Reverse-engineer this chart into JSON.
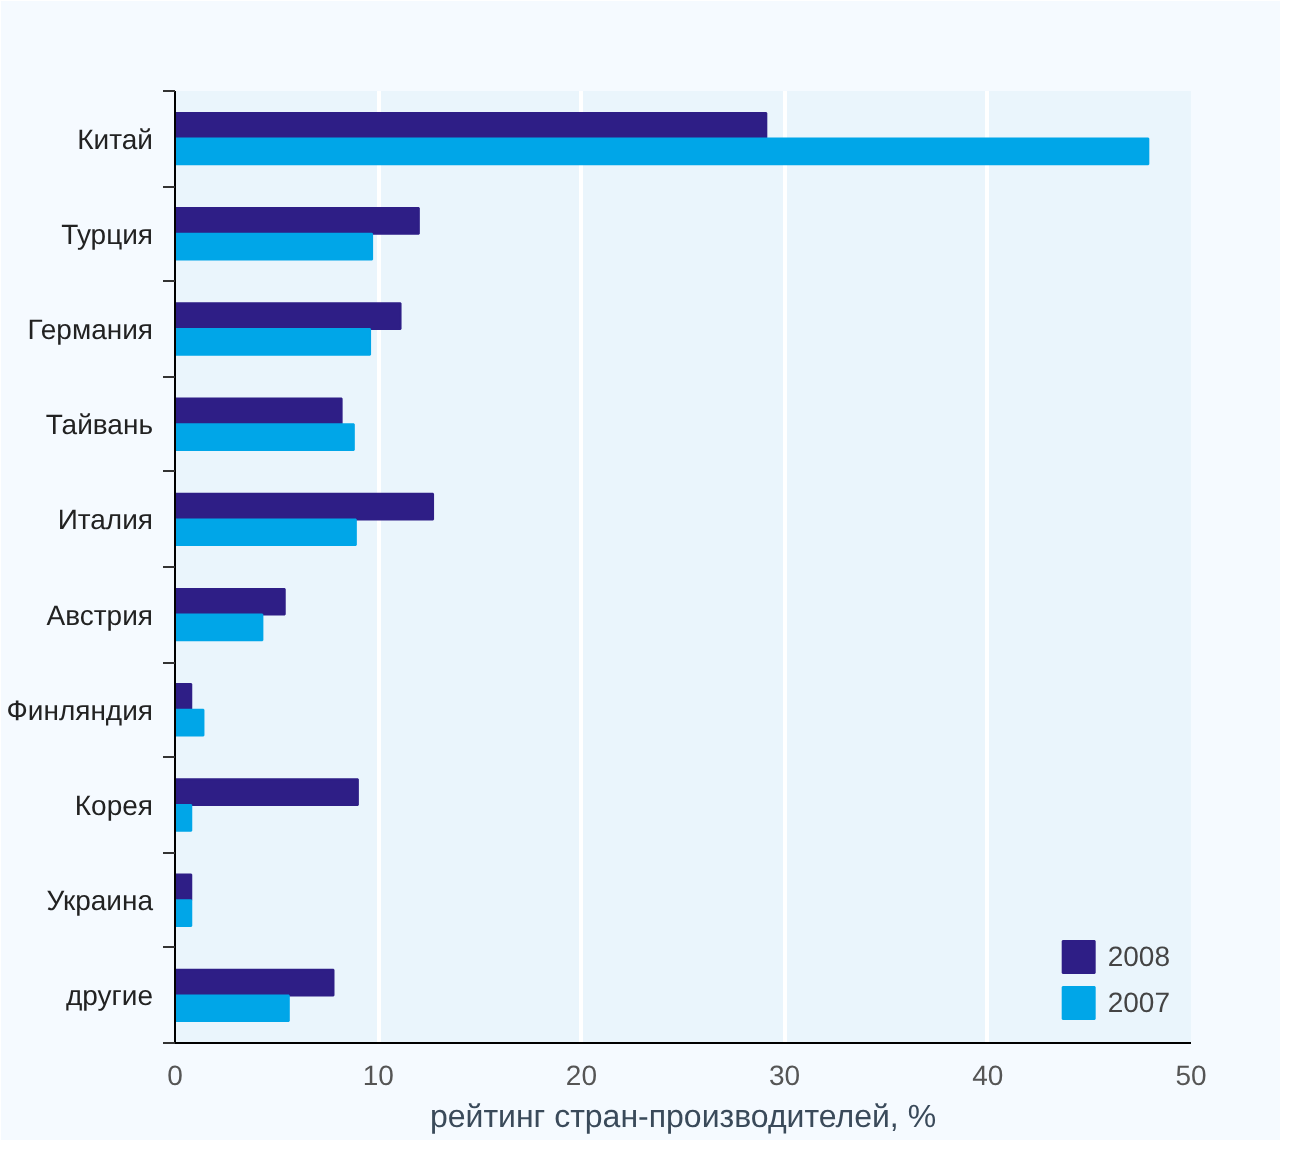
{
  "chart_data": {
    "type": "bar",
    "orientation": "horizontal",
    "xlabel": "рейтинг стран-производителей, %",
    "categories": [
      "Китай",
      "Турция",
      "Германия",
      "Тайвань",
      "Италия",
      "Австрия",
      "Финляндия",
      "Корея",
      "Украина",
      "другие"
    ],
    "series": [
      {
        "name": "2008",
        "color": "#2e1e86",
        "values": [
          29.1,
          12.0,
          11.1,
          8.2,
          12.7,
          5.4,
          0.8,
          9.0,
          0.8,
          7.8
        ]
      },
      {
        "name": "2007",
        "color": "#00a6e8",
        "values": [
          47.9,
          9.7,
          9.6,
          8.8,
          8.9,
          4.3,
          1.4,
          0.8,
          0.8,
          5.6
        ]
      }
    ],
    "xlim": [
      0,
      50
    ],
    "xticks": [
      0,
      10,
      20,
      30,
      40,
      50
    ],
    "grid": "x",
    "legend": "bottom right"
  }
}
